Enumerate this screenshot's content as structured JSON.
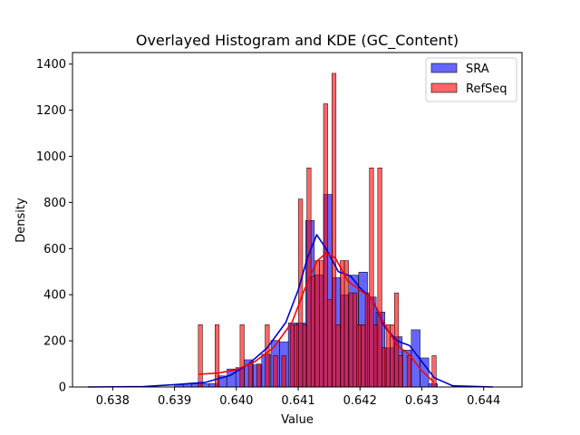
{
  "chart_data": {
    "type": "bar",
    "title": "Overlayed Histogram and KDE (GC_Content)",
    "xlabel": "Value",
    "ylabel": "Density",
    "xlim": [
      0.63735,
      0.64462
    ],
    "ylim": [
      0,
      1450
    ],
    "x_ticks": [
      0.638,
      0.639,
      0.64,
      0.641,
      0.642,
      0.643,
      0.644
    ],
    "x_tick_labels": [
      "0.638",
      "0.639",
      "0.640",
      "0.641",
      "0.642",
      "0.643",
      "0.644"
    ],
    "y_ticks": [
      0,
      200,
      400,
      600,
      800,
      1000,
      1200,
      1400
    ],
    "y_tick_labels": [
      "0",
      "200",
      "400",
      "600",
      "800",
      "1000",
      "1200",
      "1400"
    ],
    "grid": false,
    "legend_position": "top-right",
    "series": [
      {
        "name": "SRA",
        "kind": "histogram",
        "color": "#0000ff",
        "bin_width": 0.000142,
        "bins": [
          {
            "x": 0.639,
            "y": 10
          },
          {
            "x": 0.63914,
            "y": 14
          },
          {
            "x": 0.63928,
            "y": 14
          },
          {
            "x": 0.63942,
            "y": 14
          },
          {
            "x": 0.63956,
            "y": 15
          },
          {
            "x": 0.6397,
            "y": 48
          },
          {
            "x": 0.63985,
            "y": 78
          },
          {
            "x": 0.63999,
            "y": 84
          },
          {
            "x": 0.64013,
            "y": 118
          },
          {
            "x": 0.64027,
            "y": 96
          },
          {
            "x": 0.64041,
            "y": 142
          },
          {
            "x": 0.64056,
            "y": 202
          },
          {
            "x": 0.6407,
            "y": 196
          },
          {
            "x": 0.64084,
            "y": 278
          },
          {
            "x": 0.64098,
            "y": 278
          },
          {
            "x": 0.64112,
            "y": 722
          },
          {
            "x": 0.64127,
            "y": 486
          },
          {
            "x": 0.64141,
            "y": 835
          },
          {
            "x": 0.64155,
            "y": 474
          },
          {
            "x": 0.64169,
            "y": 400
          },
          {
            "x": 0.64183,
            "y": 485
          },
          {
            "x": 0.64198,
            "y": 498
          },
          {
            "x": 0.64212,
            "y": 390
          },
          {
            "x": 0.64226,
            "y": 325
          },
          {
            "x": 0.6424,
            "y": 170
          },
          {
            "x": 0.64254,
            "y": 218
          },
          {
            "x": 0.64269,
            "y": 160
          },
          {
            "x": 0.64283,
            "y": 248
          },
          {
            "x": 0.64297,
            "y": 126
          },
          {
            "x": 0.64311,
            "y": 14
          }
        ]
      },
      {
        "name": "RefSeq",
        "kind": "histogram",
        "color": "#ff0000",
        "bin_width": 6.75e-05,
        "bins": [
          {
            "x": 0.639385,
            "y": 270
          },
          {
            "x": 0.639655,
            "y": 270
          },
          {
            "x": 0.64006,
            "y": 270
          },
          {
            "x": 0.640195,
            "y": 100
          },
          {
            "x": 0.64033,
            "y": 100
          },
          {
            "x": 0.640465,
            "y": 270
          },
          {
            "x": 0.6406,
            "y": 136
          },
          {
            "x": 0.640735,
            "y": 136
          },
          {
            "x": 0.64087,
            "y": 270
          },
          {
            "x": 0.640937,
            "y": 270
          },
          {
            "x": 0.641005,
            "y": 815
          },
          {
            "x": 0.641072,
            "y": 270
          },
          {
            "x": 0.64114,
            "y": 950
          },
          {
            "x": 0.641207,
            "y": 480
          },
          {
            "x": 0.641275,
            "y": 548
          },
          {
            "x": 0.641342,
            "y": 548
          },
          {
            "x": 0.64141,
            "y": 1228
          },
          {
            "x": 0.641477,
            "y": 378
          },
          {
            "x": 0.641545,
            "y": 1360
          },
          {
            "x": 0.641612,
            "y": 270
          },
          {
            "x": 0.64168,
            "y": 548
          },
          {
            "x": 0.641747,
            "y": 548
          },
          {
            "x": 0.641815,
            "y": 408
          },
          {
            "x": 0.641882,
            "y": 408
          },
          {
            "x": 0.64195,
            "y": 270
          },
          {
            "x": 0.642017,
            "y": 270
          },
          {
            "x": 0.642085,
            "y": 408
          },
          {
            "x": 0.642152,
            "y": 950
          },
          {
            "x": 0.64222,
            "y": 270
          },
          {
            "x": 0.642287,
            "y": 950
          },
          {
            "x": 0.642355,
            "y": 170
          },
          {
            "x": 0.642422,
            "y": 270
          },
          {
            "x": 0.64249,
            "y": 270
          },
          {
            "x": 0.642557,
            "y": 408
          },
          {
            "x": 0.642625,
            "y": 136
          },
          {
            "x": 0.64276,
            "y": 136
          },
          {
            "x": 0.643165,
            "y": 136
          }
        ]
      },
      {
        "name": "SRA",
        "kind": "kde",
        "color": "#0000cc",
        "x": [
          0.6376,
          0.6385,
          0.639,
          0.6395,
          0.6399,
          0.6402,
          0.6405,
          0.6408,
          0.641,
          0.64115,
          0.6413,
          0.64145,
          0.64165,
          0.64185,
          0.642,
          0.6422,
          0.6424,
          0.6426,
          0.6428,
          0.643,
          0.6432,
          0.6435,
          0.64415
        ],
        "y": [
          0,
          2,
          10,
          20,
          50,
          100,
          170,
          280,
          420,
          560,
          660,
          600,
          500,
          480,
          430,
          380,
          260,
          200,
          180,
          110,
          40,
          5,
          0
        ]
      },
      {
        "name": "RefSeq",
        "kind": "kde",
        "color": "#ff0000",
        "x": [
          0.63938,
          0.6397,
          0.64,
          0.6403,
          0.6406,
          0.6409,
          0.6411,
          0.6413,
          0.64145,
          0.6416,
          0.6418,
          0.642,
          0.6422,
          0.6424,
          0.6426,
          0.6428,
          0.643,
          0.6432
        ],
        "y": [
          55,
          60,
          75,
          110,
          170,
          280,
          420,
          545,
          580,
          560,
          460,
          420,
          380,
          270,
          180,
          140,
          70,
          20
        ]
      }
    ]
  }
}
